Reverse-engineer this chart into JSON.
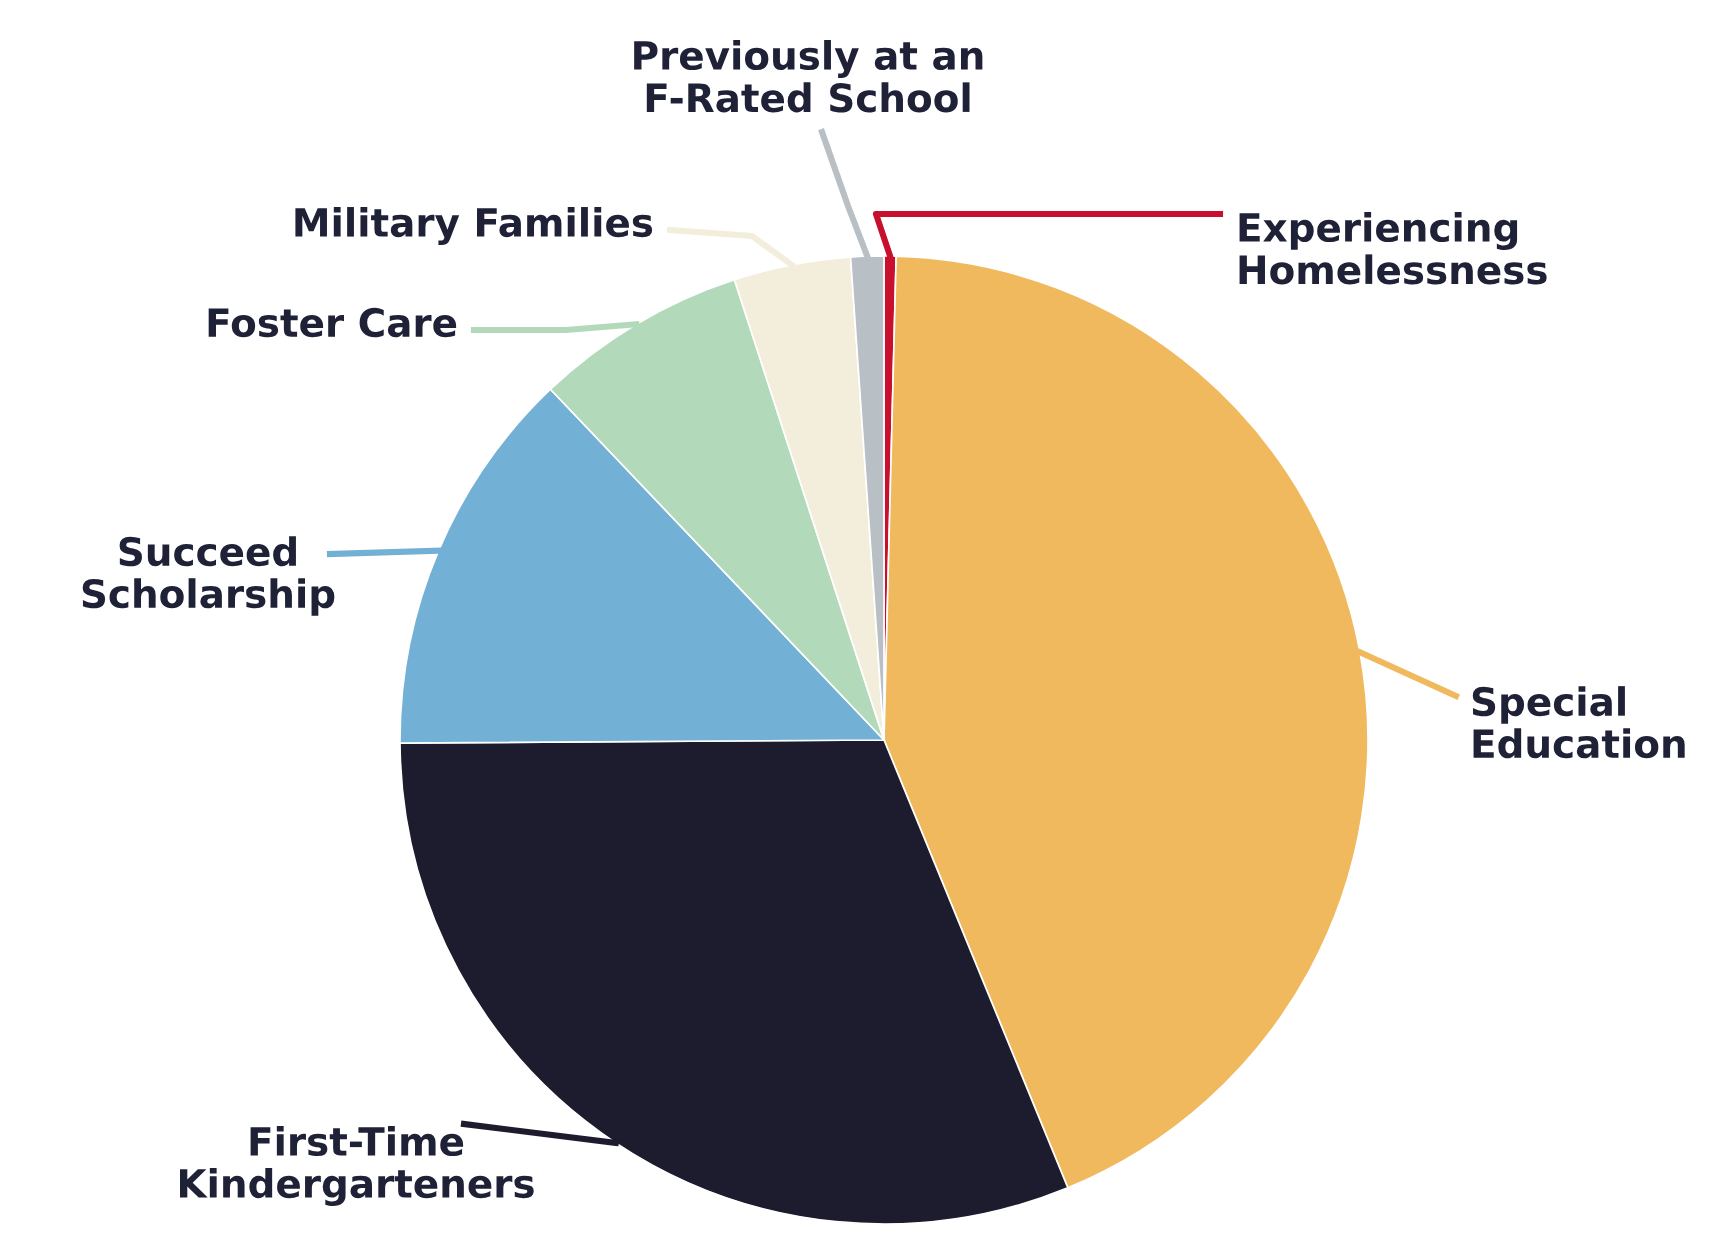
{
  "chart_data": {
    "type": "pie",
    "categories": [
      "Experiencing Homelessness",
      "Special Education",
      "First-Time Kindergarteners",
      "Succeed Scholarship",
      "Foster Care",
      "Military Families",
      "Previously at an F-Rated School"
    ],
    "values": [
      0.4,
      43.4,
      31.1,
      13.0,
      7.1,
      3.9,
      1.1
    ],
    "colors": [
      "#c8102e",
      "#f0b95e",
      "#1c1c2e",
      "#72b0d6",
      "#b3d9bb",
      "#f2eedb",
      "#b8c0c6"
    ],
    "legend": false
  }
}
